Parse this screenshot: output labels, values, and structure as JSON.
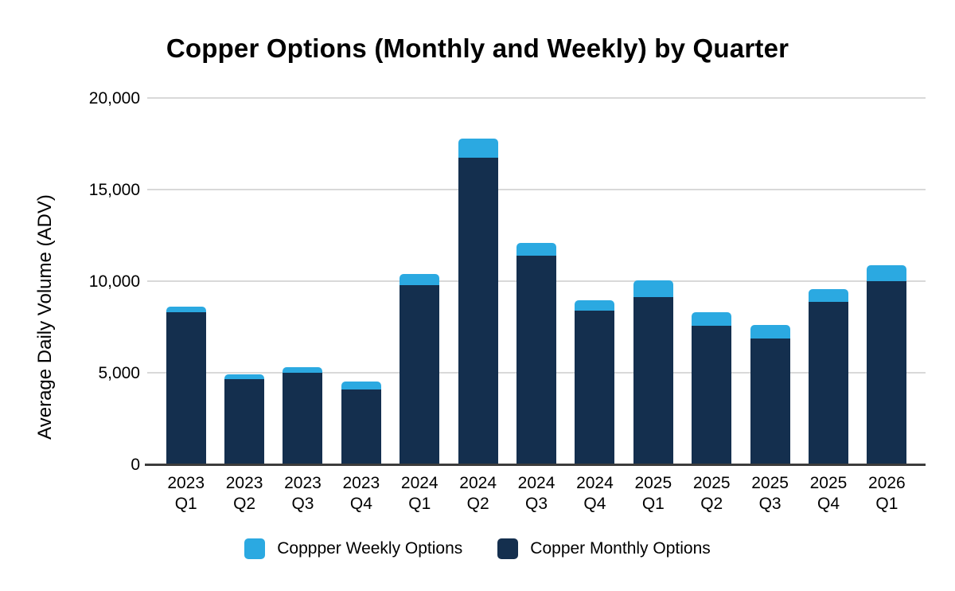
{
  "chart_data": {
    "type": "bar",
    "stacked": true,
    "title": "Copper Options (Monthly and Weekly) by Quarter",
    "ylabel": "Average Daily Volume (ADV)",
    "xlabel": "",
    "categories": [
      "2023 Q1",
      "2023 Q2",
      "2023 Q3",
      "2023 Q4",
      "2024 Q1",
      "2024 Q2",
      "2024 Q3",
      "2024 Q4",
      "2025 Q1",
      "2025 Q2",
      "2025 Q3",
      "2025 Q4",
      "2026 Q1"
    ],
    "series": [
      {
        "name": "Coppper Weekly Options",
        "color": "#2ba9e1",
        "values": [
          300,
          250,
          300,
          450,
          600,
          1050,
          700,
          550,
          900,
          750,
          750,
          700,
          850
        ]
      },
      {
        "name": "Copper Monthly Options",
        "color": "#142f4e",
        "values": [
          8300,
          4650,
          5000,
          4100,
          9800,
          16750,
          11400,
          8400,
          9150,
          7550,
          6850,
          8850,
          10000
        ]
      }
    ],
    "stack_order_bottom_to_top": [
      "Copper Monthly Options",
      "Coppper Weekly Options"
    ],
    "ylim": [
      0,
      20000
    ],
    "yticks": [
      {
        "value": 20000,
        "label": "20,000"
      },
      {
        "value": 15000,
        "label": "15,000"
      },
      {
        "value": 10000,
        "label": "10,000"
      },
      {
        "value": 5000,
        "label": "5,000"
      },
      {
        "value": 0,
        "label": "0"
      }
    ],
    "grid": true,
    "legend_position": "bottom"
  },
  "colors": {
    "background": "#ffffff",
    "gridline": "#d9d9d9",
    "axis_line": "#3c3c3c",
    "text": "#000000",
    "weekly": "#2ba9e1",
    "monthly": "#142f4e"
  }
}
